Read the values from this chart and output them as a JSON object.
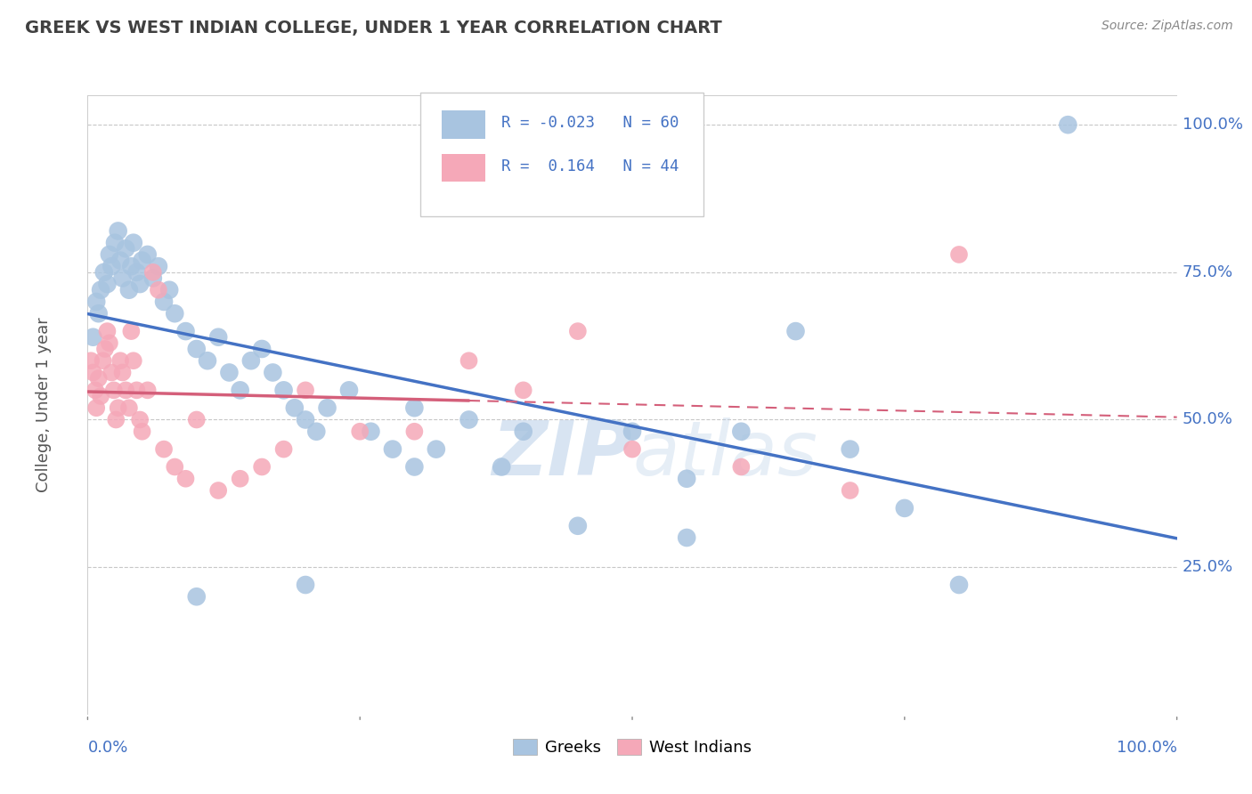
{
  "title": "GREEK VS WEST INDIAN COLLEGE, UNDER 1 YEAR CORRELATION CHART",
  "source": "Source: ZipAtlas.com",
  "ylabel": "College, Under 1 year",
  "xlim": [
    0.0,
    1.0
  ],
  "ylim": [
    0.0,
    1.05
  ],
  "yticks": [
    0.25,
    0.5,
    0.75,
    1.0
  ],
  "ytick_labels": [
    "25.0%",
    "50.0%",
    "75.0%",
    "100.0%"
  ],
  "legend_blue_r": "-0.023",
  "legend_blue_n": "60",
  "legend_pink_r": "0.164",
  "legend_pink_n": "44",
  "legend_label_blue": "Greeks",
  "legend_label_pink": "West Indians",
  "watermark_zip": "ZIP",
  "watermark_atlas": "atlas",
  "blue_scatter_x": [
    0.005,
    0.008,
    0.01,
    0.012,
    0.015,
    0.018,
    0.02,
    0.022,
    0.025,
    0.028,
    0.03,
    0.032,
    0.035,
    0.038,
    0.04,
    0.042,
    0.045,
    0.048,
    0.05,
    0.055,
    0.06,
    0.065,
    0.07,
    0.075,
    0.08,
    0.09,
    0.1,
    0.11,
    0.12,
    0.13,
    0.14,
    0.15,
    0.16,
    0.17,
    0.18,
    0.19,
    0.2,
    0.21,
    0.22,
    0.24,
    0.26,
    0.28,
    0.3,
    0.32,
    0.35,
    0.38,
    0.4,
    0.45,
    0.5,
    0.55,
    0.6,
    0.65,
    0.7,
    0.75,
    0.8,
    0.55,
    0.3,
    0.2,
    0.1,
    0.9
  ],
  "blue_scatter_y": [
    0.64,
    0.7,
    0.68,
    0.72,
    0.75,
    0.73,
    0.78,
    0.76,
    0.8,
    0.82,
    0.77,
    0.74,
    0.79,
    0.72,
    0.76,
    0.8,
    0.75,
    0.73,
    0.77,
    0.78,
    0.74,
    0.76,
    0.7,
    0.72,
    0.68,
    0.65,
    0.62,
    0.6,
    0.64,
    0.58,
    0.55,
    0.6,
    0.62,
    0.58,
    0.55,
    0.52,
    0.5,
    0.48,
    0.52,
    0.55,
    0.48,
    0.45,
    0.52,
    0.45,
    0.5,
    0.42,
    0.48,
    0.32,
    0.48,
    0.4,
    0.48,
    0.65,
    0.45,
    0.35,
    0.22,
    0.3,
    0.42,
    0.22,
    0.2,
    1.0
  ],
  "pink_scatter_x": [
    0.003,
    0.005,
    0.007,
    0.008,
    0.01,
    0.012,
    0.014,
    0.016,
    0.018,
    0.02,
    0.022,
    0.024,
    0.026,
    0.028,
    0.03,
    0.032,
    0.035,
    0.038,
    0.04,
    0.042,
    0.045,
    0.048,
    0.05,
    0.055,
    0.06,
    0.065,
    0.07,
    0.08,
    0.09,
    0.1,
    0.12,
    0.14,
    0.16,
    0.18,
    0.2,
    0.25,
    0.3,
    0.35,
    0.4,
    0.45,
    0.5,
    0.6,
    0.7,
    0.8
  ],
  "pink_scatter_y": [
    0.6,
    0.58,
    0.55,
    0.52,
    0.57,
    0.54,
    0.6,
    0.62,
    0.65,
    0.63,
    0.58,
    0.55,
    0.5,
    0.52,
    0.6,
    0.58,
    0.55,
    0.52,
    0.65,
    0.6,
    0.55,
    0.5,
    0.48,
    0.55,
    0.75,
    0.72,
    0.45,
    0.42,
    0.4,
    0.5,
    0.38,
    0.4,
    0.42,
    0.45,
    0.55,
    0.48,
    0.48,
    0.6,
    0.55,
    0.65,
    0.45,
    0.42,
    0.38,
    0.78
  ],
  "blue_color": "#a8c4e0",
  "pink_color": "#f5a8b8",
  "blue_line_color": "#4472c4",
  "pink_line_color": "#d45f7a",
  "pink_dash_color": "#e8a0b0",
  "background_color": "#ffffff",
  "grid_color": "#c8c8c8",
  "axis_label_color": "#4472c4",
  "title_color": "#404040",
  "source_color": "#888888"
}
